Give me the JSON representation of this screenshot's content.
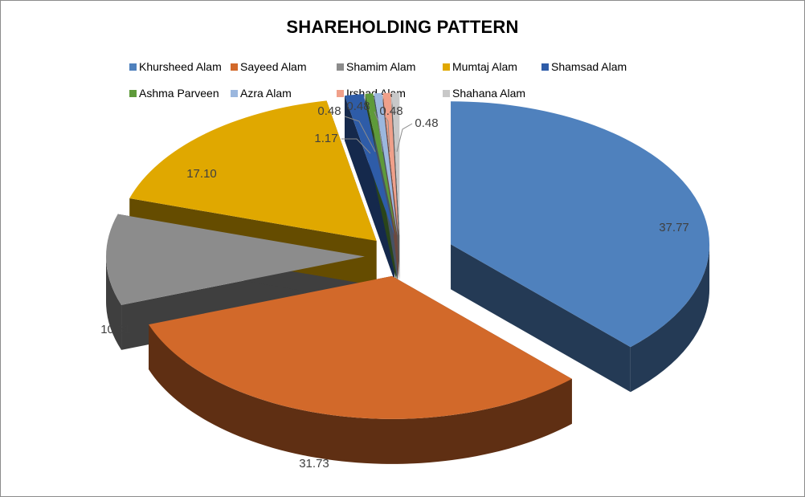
{
  "chart_data": {
    "type": "pie",
    "style": "3d-exploded",
    "title": "SHAREHOLDING PATTERN",
    "legend_position": "top",
    "series": [
      {
        "name": "Khursheed Alam",
        "value": 37.77,
        "label": "37.77",
        "color": "#4f81bd"
      },
      {
        "name": "Sayeed Alam",
        "value": 31.73,
        "label": "31.73",
        "color": "#d2692a"
      },
      {
        "name": "Shamim Alam",
        "value": 10.31,
        "label": "10.31",
        "color": "#8c8c8c"
      },
      {
        "name": "Mumtaj Alam",
        "value": 17.1,
        "label": "17.10",
        "color": "#e0a800"
      },
      {
        "name": "Shamsad Alam",
        "value": 1.17,
        "label": "1.17",
        "color": "#2e5ca8"
      },
      {
        "name": "Ashma Parveen",
        "value": 0.48,
        "label": "0.48",
        "color": "#5e9a3a"
      },
      {
        "name": "Azra Alam",
        "value": 0.48,
        "label": "0.48",
        "color": "#9bb7de"
      },
      {
        "name": "Irshad Alam",
        "value": 0.48,
        "label": "0.48",
        "color": "#f0a08a"
      },
      {
        "name": "Shahana Alam",
        "value": 0.48,
        "label": "0.48",
        "color": "#c8c8c8"
      }
    ]
  }
}
